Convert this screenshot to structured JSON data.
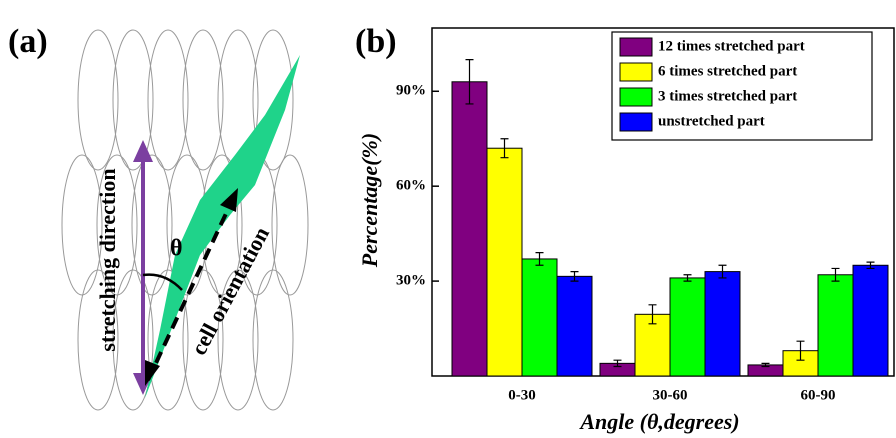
{
  "panel_a": {
    "label": "(a)",
    "stretch_label": "stretching direction",
    "cell_label": "cell orientation",
    "angle_label": "θ"
  },
  "chart_data": {
    "type": "bar",
    "panel_label": "(b)",
    "y_label": "Percentage(%)",
    "x_label": "Angle (θ,degrees)",
    "categories": [
      "0-30",
      "30-60",
      "60-90"
    ],
    "series": [
      {
        "name": "12 times stretched part",
        "color": "#800080",
        "values": [
          93,
          4,
          3.5
        ],
        "errors": [
          7,
          1,
          0.5
        ]
      },
      {
        "name": "6 times stretched part",
        "color": "#ffff00",
        "values": [
          72,
          19.5,
          8
        ],
        "errors": [
          3,
          3,
          3
        ]
      },
      {
        "name": "3 times stretched part",
        "color": "#00ff00",
        "values": [
          37,
          31,
          32
        ],
        "errors": [
          2,
          1,
          2
        ]
      },
      {
        "name": "unstretched part",
        "color": "#0000ff",
        "values": [
          31.5,
          33,
          35
        ],
        "errors": [
          1.5,
          2,
          1
        ]
      }
    ],
    "ylim": [
      0,
      110
    ],
    "yticks": [
      {
        "value": 30,
        "label": "30%"
      },
      {
        "value": 60,
        "label": "60%"
      },
      {
        "value": 90,
        "label": "90%"
      }
    ]
  }
}
